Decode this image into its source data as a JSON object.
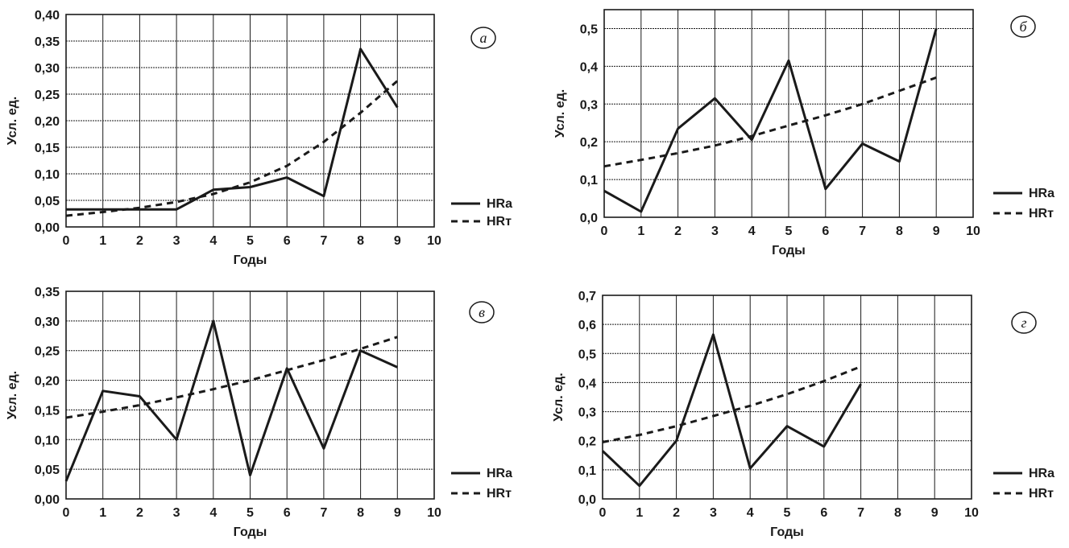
{
  "colors": {
    "line": "#1a1a1a",
    "grid": "#1a1a1a",
    "background": "#ffffff"
  },
  "chart_data": [
    {
      "type": "line",
      "panel_label": "а",
      "xlabel": "Годы",
      "ylabel": "Усл. ед.",
      "xlim": [
        0,
        10
      ],
      "ylim": [
        0,
        0.4
      ],
      "x_ticks": [
        "0",
        "1",
        "2",
        "3",
        "4",
        "5",
        "6",
        "7",
        "8",
        "9",
        "10"
      ],
      "y_ticks": [
        "0,00",
        "0,05",
        "0,10",
        "0,15",
        "0,20",
        "0,25",
        "0,30",
        "0,35",
        "0,40"
      ],
      "grid": true,
      "legend_position": "right-bottom",
      "series": [
        {
          "name": "HRa",
          "style": "solid",
          "x": [
            0,
            1,
            2,
            3,
            4,
            5,
            6,
            7,
            8,
            9
          ],
          "y": [
            0.033,
            0.033,
            0.033,
            0.033,
            0.07,
            0.075,
            0.093,
            0.058,
            0.335,
            0.225
          ]
        },
        {
          "name": "HRт",
          "style": "dashed",
          "x": [
            0,
            1,
            2,
            3,
            4,
            5,
            6,
            7,
            8,
            9
          ],
          "y": [
            0.021,
            0.028,
            0.036,
            0.047,
            0.062,
            0.084,
            0.115,
            0.16,
            0.215,
            0.275
          ]
        }
      ]
    },
    {
      "type": "line",
      "panel_label": "б",
      "xlabel": "Годы",
      "ylabel": "Усл. ед.",
      "xlim": [
        0,
        10
      ],
      "ylim": [
        0,
        0.55
      ],
      "x_ticks": [
        "0",
        "1",
        "2",
        "3",
        "4",
        "5",
        "6",
        "7",
        "8",
        "9",
        "10"
      ],
      "y_ticks": [
        "0,0",
        "0,1",
        "0,2",
        "0,3",
        "0,4",
        "0,5"
      ],
      "grid": true,
      "legend_position": "right-bottom",
      "series": [
        {
          "name": "HRa",
          "style": "solid",
          "x": [
            0,
            1,
            2,
            3,
            4,
            5,
            6,
            7,
            8,
            9
          ],
          "y": [
            0.07,
            0.015,
            0.235,
            0.315,
            0.205,
            0.415,
            0.075,
            0.195,
            0.148,
            0.5
          ]
        },
        {
          "name": "HRт",
          "style": "dashed",
          "x": [
            0,
            1,
            2,
            3,
            4,
            5,
            6,
            7,
            8,
            9
          ],
          "y": [
            0.135,
            0.152,
            0.17,
            0.19,
            0.215,
            0.243,
            0.27,
            0.3,
            0.335,
            0.37
          ]
        }
      ]
    },
    {
      "type": "line",
      "panel_label": "в",
      "xlabel": "Годы",
      "ylabel": "Усл. ед.",
      "xlim": [
        0,
        10
      ],
      "ylim": [
        0,
        0.35
      ],
      "x_ticks": [
        "0",
        "1",
        "2",
        "3",
        "4",
        "5",
        "6",
        "7",
        "8",
        "9",
        "10"
      ],
      "y_ticks": [
        "0,00",
        "0,05",
        "0,10",
        "0,15",
        "0,20",
        "0,25",
        "0,30",
        "0,35"
      ],
      "grid": true,
      "legend_position": "right-bottom",
      "series": [
        {
          "name": "HRa",
          "style": "solid",
          "x": [
            0,
            1,
            2,
            3,
            4,
            5,
            6,
            7,
            8,
            9
          ],
          "y": [
            0.03,
            0.182,
            0.173,
            0.1,
            0.3,
            0.04,
            0.22,
            0.085,
            0.25,
            0.222
          ]
        },
        {
          "name": "HRт",
          "style": "dashed",
          "x": [
            0,
            1,
            2,
            3,
            4,
            5,
            6,
            7,
            8,
            9
          ],
          "y": [
            0.137,
            0.147,
            0.158,
            0.171,
            0.185,
            0.2,
            0.217,
            0.234,
            0.253,
            0.273
          ]
        }
      ]
    },
    {
      "type": "line",
      "panel_label": "г",
      "xlabel": "Годы",
      "ylabel": "Усл. ед.",
      "xlim": [
        0,
        10
      ],
      "ylim": [
        0,
        0.7
      ],
      "x_ticks": [
        "0",
        "1",
        "2",
        "3",
        "4",
        "5",
        "6",
        "7",
        "8",
        "9",
        "10"
      ],
      "y_ticks": [
        "0,0",
        "0,1",
        "0,2",
        "0,3",
        "0,4",
        "0,5",
        "0,6",
        "0,7"
      ],
      "grid": true,
      "legend_position": "right-bottom",
      "series": [
        {
          "name": "HRa",
          "style": "solid",
          "x": [
            0,
            1,
            2,
            3,
            4,
            5,
            6,
            7
          ],
          "y": [
            0.165,
            0.045,
            0.2,
            0.565,
            0.105,
            0.25,
            0.18,
            0.395
          ]
        },
        {
          "name": "HRт",
          "style": "dashed",
          "x": [
            0,
            1,
            2,
            3,
            4,
            5,
            6,
            7
          ],
          "y": [
            0.195,
            0.22,
            0.25,
            0.285,
            0.32,
            0.36,
            0.405,
            0.455
          ]
        }
      ]
    }
  ]
}
